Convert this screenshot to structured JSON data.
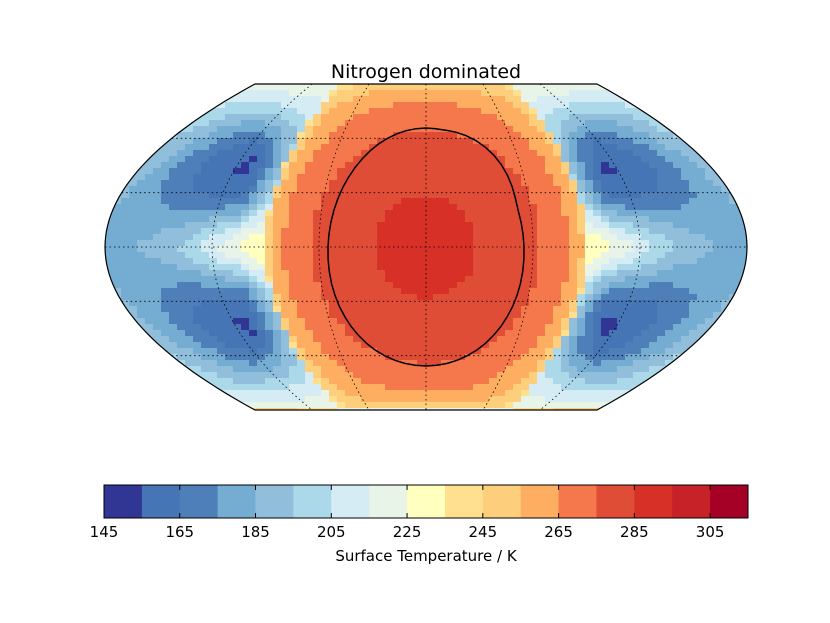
{
  "chart_data": {
    "type": "heatmap",
    "title": "Nitrogen dominated",
    "projection": "Robinson (global map)",
    "colormap": "RdYlBu_r",
    "colorbar": {
      "label": "Surface Temperature / K",
      "vmin": 145,
      "vmax": 315,
      "step": 10,
      "tick_values": [
        145,
        165,
        185,
        205,
        225,
        245,
        265,
        285,
        305
      ],
      "tick_labels": [
        "145",
        "165",
        "185",
        "205",
        "225",
        "245",
        "265",
        "285",
        "305"
      ],
      "colors": [
        "#313695",
        "#4575b4",
        "#4f7fb9",
        "#74add1",
        "#91bfdb",
        "#abd9e9",
        "#d6ecf4",
        "#e8f4e8",
        "#ffffbf",
        "#fee090",
        "#fdce7c",
        "#fdae61",
        "#f4784b",
        "#e04d36",
        "#d73027",
        "#c62227",
        "#a50026"
      ]
    },
    "field": {
      "substellar_lon_deg": 0,
      "substellar_lat_deg": 0,
      "max_temperature_K": 287,
      "min_temperature_K": 150,
      "contour_level_K": 273
    },
    "graticule": {
      "meridians_deg": [
        -120,
        -60,
        0,
        60,
        120
      ],
      "parallels_deg": [
        -60,
        -30,
        0,
        30,
        60
      ],
      "style": "dotted"
    }
  }
}
